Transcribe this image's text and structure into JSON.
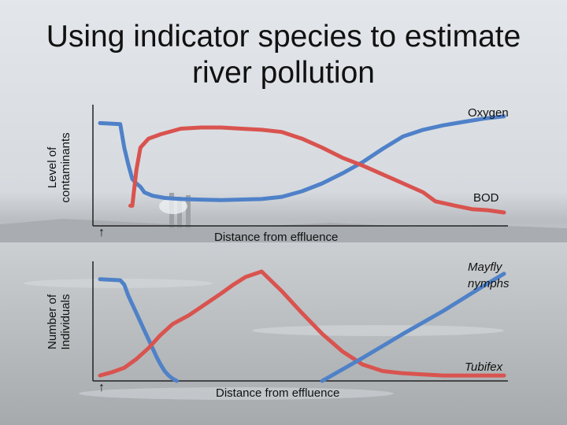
{
  "title_line1": "Using indicator species to estimate",
  "title_line2": "river pollution",
  "chart_data": [
    {
      "type": "line",
      "ylabel_line1": "Level of",
      "ylabel_line2": "contaminants",
      "xlabel": "Distance from effluence",
      "xlim": [
        0,
        100
      ],
      "ylim": [
        0,
        100
      ],
      "series": [
        {
          "name": "Oxygen",
          "color": "#4f81c8",
          "x": [
            0,
            5,
            6,
            7,
            8,
            9,
            10,
            11,
            13,
            16,
            20,
            30,
            40,
            45,
            50,
            55,
            60,
            65,
            70,
            75,
            80,
            85,
            90,
            95,
            100
          ],
          "y": [
            92,
            91,
            70,
            55,
            42,
            38,
            35,
            30,
            27,
            25,
            24,
            23,
            24,
            26,
            31,
            38,
            47,
            57,
            69,
            80,
            86,
            90,
            93,
            96,
            98
          ]
        },
        {
          "name": "BOD",
          "color": "#d9534f",
          "x": [
            7.5,
            8,
            9,
            10,
            12,
            15,
            20,
            25,
            30,
            35,
            40,
            45,
            50,
            55,
            60,
            65,
            70,
            75,
            80,
            83,
            88,
            92,
            96,
            100
          ],
          "y": [
            18,
            18,
            50,
            70,
            78,
            82,
            87,
            88,
            88,
            87,
            86,
            84,
            78,
            70,
            61,
            54,
            46,
            38,
            30,
            22,
            18,
            15,
            14,
            12
          ]
        }
      ],
      "arrow_label": "↑"
    },
    {
      "type": "line",
      "ylabel_line1": "Number of",
      "ylabel_line2": "Individuals",
      "xlabel": "Distance from effluence",
      "xlim": [
        0,
        100
      ],
      "ylim": [
        0,
        100
      ],
      "series": [
        {
          "name": "Mayfly nymphs",
          "name_line1": "Mayfly",
          "name_line2": "nymphs",
          "color": "#4f81c8",
          "x": [
            0,
            5,
            6,
            7,
            8,
            9,
            10,
            11,
            12,
            13,
            14,
            15,
            16,
            17,
            18,
            19
          ],
          "y": [
            93,
            92,
            88,
            78,
            70,
            62,
            54,
            46,
            38,
            30,
            22,
            15,
            9,
            5,
            2,
            0
          ]
        },
        {
          "name": "Tubifex",
          "color": "#d9534f",
          "x": [
            0,
            3,
            6,
            9,
            12,
            15,
            18,
            22,
            26,
            30,
            33,
            36,
            40,
            45,
            50,
            55,
            60,
            65,
            70,
            75,
            80,
            85,
            90,
            95,
            100
          ],
          "y": [
            5,
            8,
            12,
            20,
            30,
            42,
            52,
            60,
            70,
            80,
            88,
            95,
            100,
            82,
            62,
            43,
            27,
            15,
            9,
            7,
            6,
            5,
            5,
            5,
            5
          ]
        },
        {
          "name": "",
          "color": "#4f81c8",
          "x": [
            55,
            65,
            75,
            85,
            95,
            100
          ],
          "y": [
            0,
            21,
            43,
            64,
            87,
            98
          ]
        }
      ],
      "arrow_label": "↑"
    }
  ]
}
